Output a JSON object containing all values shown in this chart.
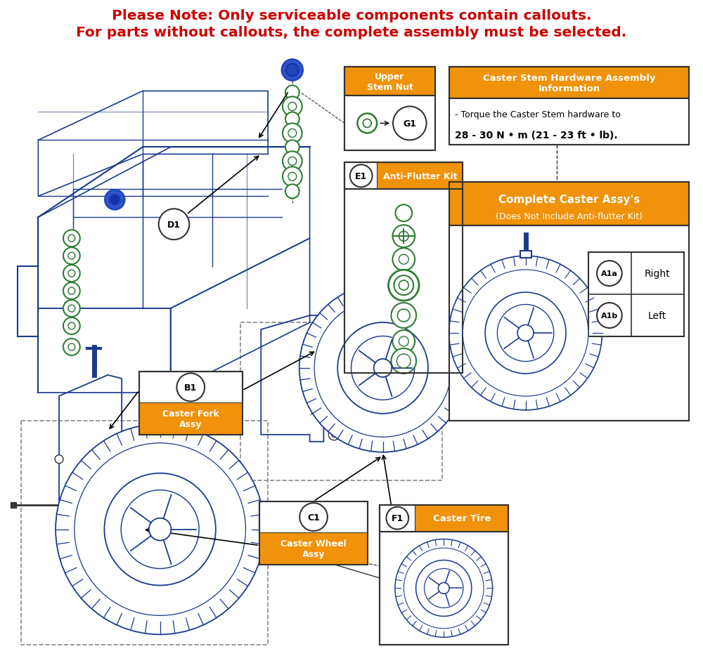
{
  "title_line1": "Please Note: Only serviceable components contain callouts.",
  "title_line2": "For parts without callouts, the complete assembly must be selected.",
  "title_color": "#cc0000",
  "background_color": "#ffffff",
  "orange_color": "#f0920a",
  "blue_color": "#1a3a8f",
  "green_color": "#2e7d32",
  "dark_gray": "#333333",
  "info_title": "Caster Stem Hardware Assembly\nInformation",
  "info_line1": "- Torque the Caster Stem hardware to",
  "info_line2": "28 - 30 N • m (21 - 23 ft • lb).",
  "ca_title": "Complete Caster Assy's",
  "ca_subtitle": "(Does Not Include Anti-flutter Kit)",
  "A1a_label": "Right",
  "A1b_label": "Left"
}
